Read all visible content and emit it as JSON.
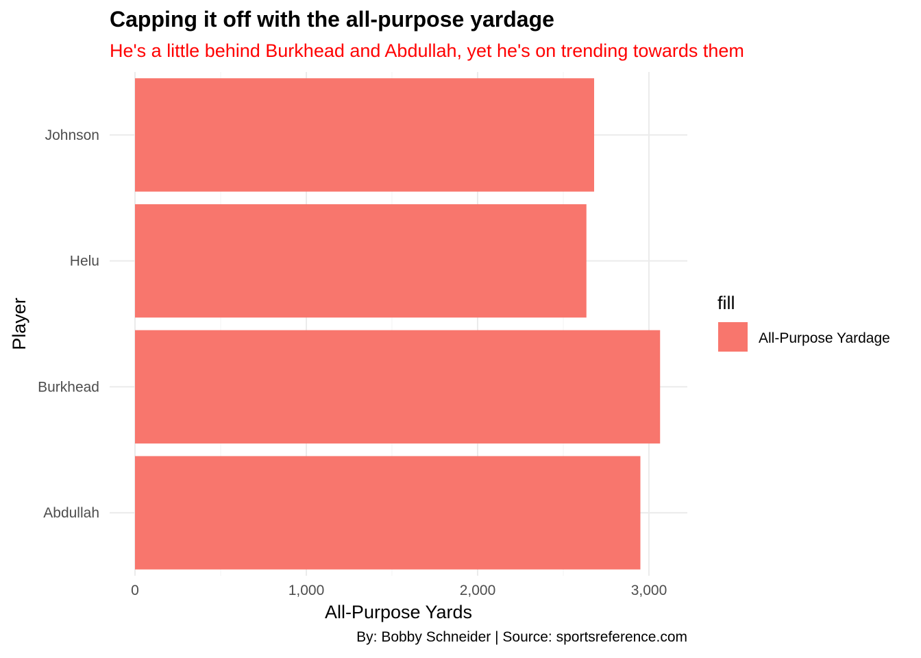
{
  "chart_data": {
    "type": "bar",
    "orientation": "horizontal",
    "title": "Capping it off with the all-purpose yardage",
    "subtitle": "He's a little behind Burkhead and Abdullah, yet he's on trending towards them",
    "caption": "By: Bobby Schneider | Source: sportsreference.com",
    "xlabel": "All-Purpose Yards",
    "ylabel": "Player",
    "categories": [
      "Abdullah",
      "Burkhead",
      "Helu",
      "Johnson"
    ],
    "series": [
      {
        "name": "All-Purpose Yardage",
        "values": [
          2950,
          3065,
          2635,
          2680
        ]
      }
    ],
    "xlim": [
      0,
      3200
    ],
    "x_ticks": [
      0,
      1000,
      2000,
      3000
    ],
    "x_tick_labels": [
      "0",
      "1,000",
      "2,000",
      "3,000"
    ],
    "legend_title": "fill",
    "legend_position": "right",
    "grid": true,
    "colors": {
      "bar": "#F8766D",
      "subtitle": "#FF0000",
      "grid_major": "#EBEBEB",
      "grid_minor": "#F5F5F5",
      "tick_label": "#4D4D4D"
    }
  }
}
